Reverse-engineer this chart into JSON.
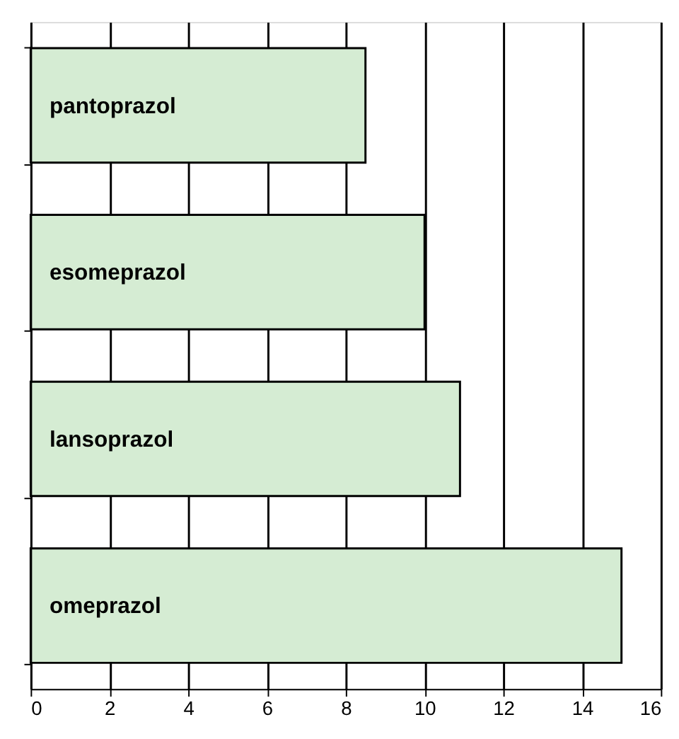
{
  "chart_data": {
    "type": "bar",
    "orientation": "horizontal",
    "categories": [
      "pantoprazol",
      "esomeprazol",
      "lansoprazol",
      "omeprazol"
    ],
    "values": [
      8.5,
      10,
      10.9,
      15
    ],
    "color": "#d5ecd3",
    "xlim": [
      0,
      16
    ],
    "xticks": [
      0,
      2,
      4,
      6,
      8,
      10,
      12,
      14,
      16
    ],
    "grid": "x"
  }
}
